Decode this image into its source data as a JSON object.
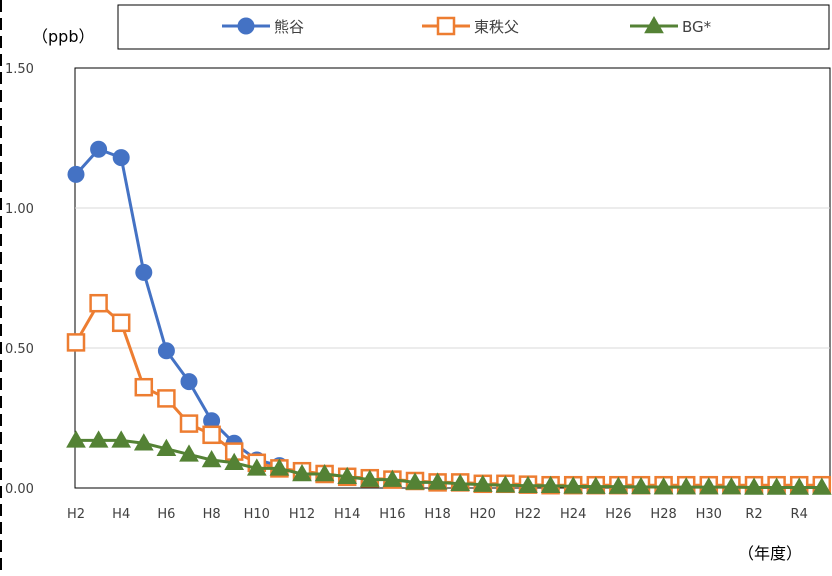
{
  "chart_data": {
    "type": "line",
    "y_unit_label": "（ppb）",
    "x_unit_label": "（年度）",
    "ylim": [
      0,
      1.5
    ],
    "y_ticks": [
      {
        "value": 0,
        "label": "0.00"
      },
      {
        "value": 0.5,
        "label": "0.50"
      },
      {
        "value": 1.0,
        "label": "1.00"
      },
      {
        "value": 1.5,
        "label": "1.50"
      }
    ],
    "grid": true,
    "legend_position": "top",
    "categories": [
      "H2",
      "H3",
      "H4",
      "H5",
      "H6",
      "H7",
      "H8",
      "H9",
      "H10",
      "H11",
      "H12",
      "H13",
      "H14",
      "H15",
      "H16",
      "H17",
      "H18",
      "H19",
      "H20",
      "H21",
      "H22",
      "H23",
      "H24",
      "H25",
      "H26",
      "H27",
      "H28",
      "H29",
      "H30",
      "R1",
      "R2",
      "R3",
      "R4",
      "R5"
    ],
    "x_tick_labels": [
      "H2",
      "H4",
      "H6",
      "H8",
      "H10",
      "H12",
      "H14",
      "H16",
      "H18",
      "H20",
      "H22",
      "H24",
      "H26",
      "H28",
      "H30",
      "R2",
      "R4"
    ],
    "series": [
      {
        "name": "熊谷",
        "color": "#4472c4",
        "marker": "circle",
        "values": [
          1.12,
          1.21,
          1.18,
          0.77,
          0.49,
          0.38,
          0.24,
          0.16,
          0.1,
          0.08,
          null,
          null,
          null,
          null,
          null,
          null,
          null,
          null,
          null,
          null,
          null,
          null,
          null,
          null,
          null,
          null,
          null,
          null,
          null,
          null,
          null,
          null,
          null,
          null
        ]
      },
      {
        "name": "東秩父",
        "color": "#ed7d31",
        "marker": "square-open",
        "values": [
          0.52,
          0.66,
          0.59,
          0.36,
          0.32,
          0.23,
          0.19,
          0.13,
          0.09,
          0.07,
          0.06,
          0.05,
          0.04,
          0.035,
          0.03,
          0.025,
          0.02,
          0.02,
          0.015,
          0.015,
          0.012,
          0.01,
          0.01,
          0.01,
          0.01,
          0.01,
          0.01,
          0.01,
          0.01,
          0.01,
          0.01,
          0.01,
          0.01,
          0.01
        ]
      },
      {
        "name": "BG*",
        "color": "#548235",
        "marker": "triangle",
        "values": [
          0.17,
          0.17,
          0.17,
          0.16,
          0.14,
          0.12,
          0.1,
          0.09,
          0.07,
          0.07,
          0.05,
          0.05,
          0.04,
          0.03,
          0.03,
          0.02,
          0.02,
          0.015,
          0.012,
          0.01,
          0.008,
          0.008,
          0.006,
          0.005,
          0.005,
          0.004,
          0.003,
          0.003,
          0.003,
          0.003,
          0.002,
          0.002,
          0.002,
          0.002
        ]
      }
    ]
  }
}
